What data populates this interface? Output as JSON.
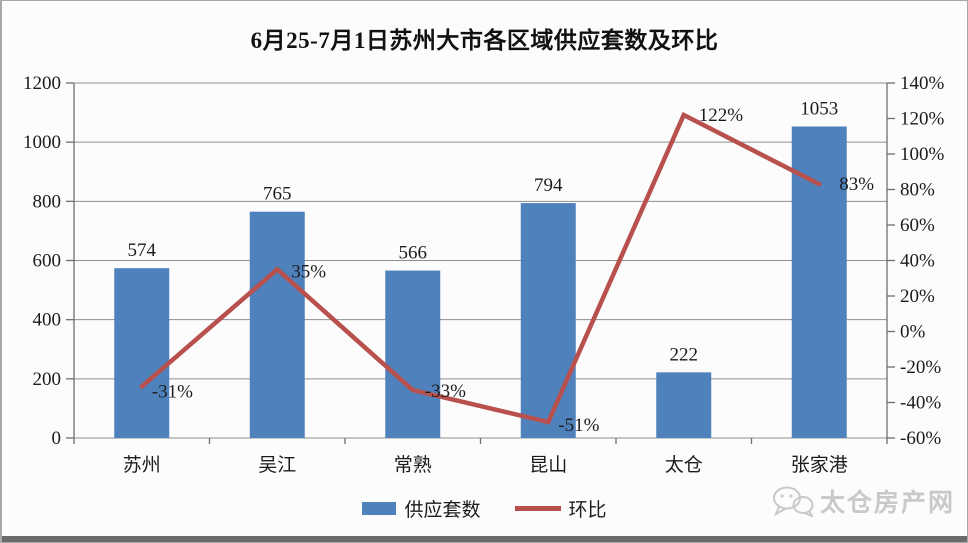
{
  "chart_data": {
    "type": "bar+line",
    "title": "6月25-7月1日苏州大市各区域供应套数及环比",
    "categories": [
      "苏州",
      "吴江",
      "常熟",
      "昆山",
      "太仓",
      "张家港"
    ],
    "series": [
      {
        "name": "供应套数",
        "type": "bar",
        "axis": "left",
        "color": "#4f81bd",
        "values": [
          574,
          765,
          566,
          794,
          222,
          1053
        ],
        "labels": [
          "574",
          "765",
          "566",
          "794",
          "222",
          "1053"
        ]
      },
      {
        "name": "环比",
        "type": "line",
        "axis": "right",
        "color": "#b8514d",
        "values": [
          -31,
          35,
          -33,
          -51,
          122,
          83
        ],
        "labels": [
          "-31%",
          "35%",
          "-33%",
          "-51%",
          "122%",
          "83%"
        ]
      }
    ],
    "left_axis": {
      "min": 0,
      "max": 1200,
      "step": 200,
      "ticks": [
        "0",
        "200",
        "400",
        "600",
        "800",
        "1000",
        "1200"
      ]
    },
    "right_axis": {
      "min": -60,
      "max": 140,
      "step": 20,
      "ticks": [
        "-60%",
        "-40%",
        "-20%",
        "0%",
        "20%",
        "40%",
        "60%",
        "80%",
        "100%",
        "120%",
        "140%"
      ]
    },
    "grid": true,
    "legend_position": "bottom"
  },
  "legend": {
    "items": [
      {
        "label": "供应套数",
        "color": "#4f81bd"
      },
      {
        "label": "环比",
        "color": "#b8514d"
      }
    ]
  },
  "watermark": {
    "icon": "wechat-icon",
    "text": "太仓房产网"
  }
}
